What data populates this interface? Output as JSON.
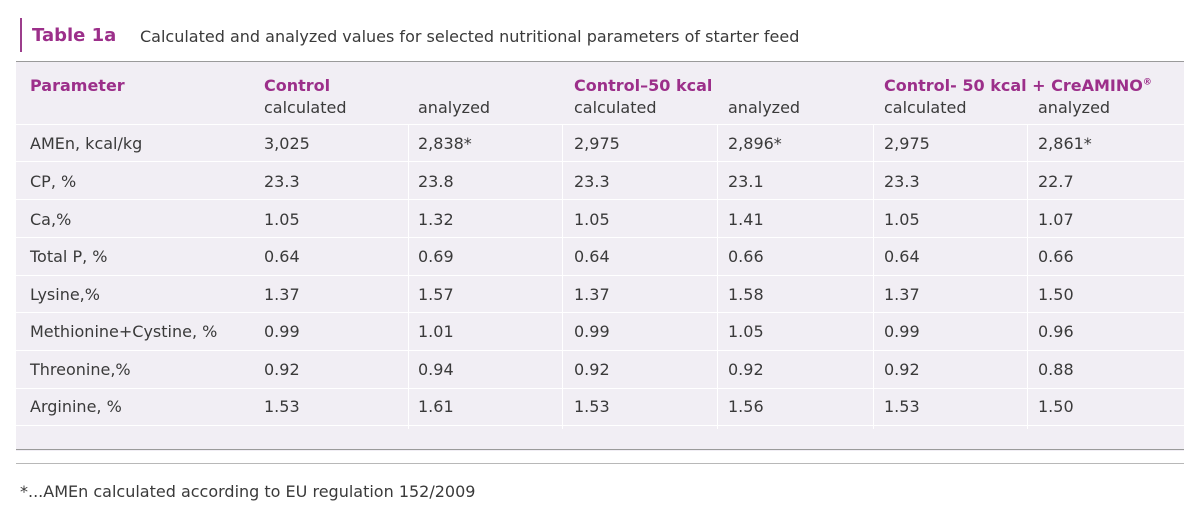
{
  "caption": {
    "label": "Table 1a",
    "title": "Calculated and analyzed values for selected nutritional parameters of starter feed"
  },
  "headers": {
    "parameter": "Parameter",
    "groups": [
      {
        "name": "Control",
        "sub1": "calculated",
        "sub2": "analyzed"
      },
      {
        "name": "Control–50 kcal",
        "sub1": "calculated",
        "sub2": "analyzed"
      },
      {
        "name": "Control- 50 kcal + CreAMINO",
        "sup": "®",
        "sub1": "calculated",
        "sub2": "analyzed"
      }
    ]
  },
  "rows": [
    {
      "param": "AMEn, kcal/kg",
      "values": [
        "3,025",
        "2,838*",
        "2,975",
        "2,896*",
        "2,975",
        "2,861*"
      ]
    },
    {
      "param": "CP, %",
      "values": [
        "23.3",
        "23.8",
        "23.3",
        "23.1",
        "23.3",
        "22.7"
      ]
    },
    {
      "param": "Ca,%",
      "values": [
        "1.05",
        "1.32",
        "1.05",
        "1.41",
        "1.05",
        "1.07"
      ]
    },
    {
      "param": "Total P, %",
      "values": [
        "0.64",
        "0.69",
        "0.64",
        "0.66",
        "0.64",
        "0.66"
      ]
    },
    {
      "param": "Lysine,%",
      "values": [
        "1.37",
        "1.57",
        "1.37",
        "1.58",
        "1.37",
        "1.50"
      ]
    },
    {
      "param": "Methionine+Cystine, %",
      "values": [
        "0.99",
        "1.01",
        "0.99",
        "1.05",
        "0.99",
        "0.96"
      ]
    },
    {
      "param": "Threonine,%",
      "values": [
        "0.92",
        "0.94",
        "0.92",
        "0.92",
        "0.92",
        "0.88"
      ]
    },
    {
      "param": "Arginine, %",
      "values": [
        "1.53",
        "1.61",
        "1.53",
        "1.56",
        "1.53",
        "1.50"
      ]
    }
  ],
  "footnote": "*...AMEn calculated according to EU regulation 152/2009"
}
